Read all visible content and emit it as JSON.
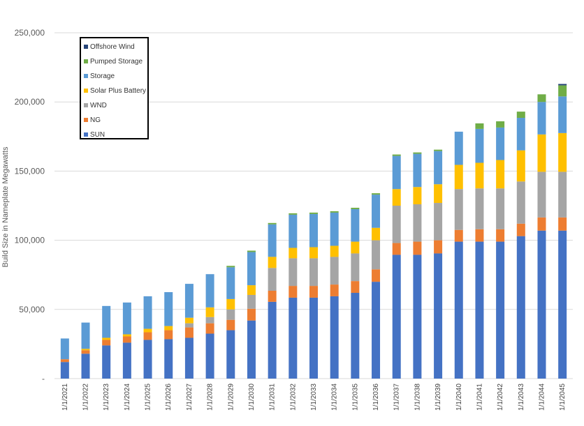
{
  "chart_data": {
    "type": "bar",
    "stacked": true,
    "title": "",
    "xlabel": "",
    "ylabel": "Build Size in Nameplate Megawatts",
    "ylim": [
      0,
      250000
    ],
    "yticks": [
      0,
      50000,
      100000,
      150000,
      200000,
      250000
    ],
    "ytick_labels": [
      "-",
      "50,000",
      "100,000",
      "150,000",
      "200,000",
      "250,000"
    ],
    "grid": true,
    "legend_position": "top-left",
    "categories": [
      "1/1/2021",
      "1/1/2022",
      "1/1/2023",
      "1/1/2024",
      "1/1/2025",
      "1/1/2026",
      "1/1/2027",
      "1/1/2028",
      "1/1/2029",
      "1/1/2030",
      "1/1/2031",
      "1/1/2032",
      "1/1/2033",
      "1/1/2034",
      "1/1/2035",
      "1/1/2036",
      "1/1/2037",
      "1/1/2038",
      "1/1/2039",
      "1/1/2040",
      "1/1/2041",
      "1/1/2042",
      "1/1/2043",
      "1/1/2044",
      "1/1/2045"
    ],
    "series": [
      {
        "name": "SUN",
        "color": "#4472C4",
        "values": [
          12000,
          18000,
          24000,
          26000,
          28000,
          28500,
          29500,
          32500,
          35000,
          42000,
          55500,
          58500,
          58500,
          59500,
          62000,
          70000,
          89500,
          89500,
          90500,
          99000,
          99000,
          99000,
          103000,
          107000,
          107000
        ]
      },
      {
        "name": "NG",
        "color": "#ED7D31",
        "values": [
          2000,
          2500,
          4000,
          4500,
          5500,
          6500,
          7500,
          7500,
          7500,
          8500,
          8000,
          8500,
          8500,
          8500,
          8500,
          9000,
          8500,
          9500,
          9500,
          8500,
          9000,
          9000,
          9000,
          9500,
          9500
        ]
      },
      {
        "name": "WND",
        "color": "#A5A5A5",
        "values": [
          0,
          0,
          0,
          0,
          0,
          0,
          3000,
          4500,
          7500,
          10000,
          16500,
          20000,
          20000,
          20000,
          20000,
          21000,
          27000,
          27000,
          27000,
          29500,
          29500,
          29500,
          30500,
          33000,
          33000
        ]
      },
      {
        "name": "Solar Plus Battery",
        "color": "#FFC000",
        "values": [
          0,
          1000,
          1500,
          1500,
          2500,
          3000,
          4000,
          7000,
          7500,
          7000,
          8000,
          7500,
          8000,
          8000,
          8500,
          9000,
          12000,
          12500,
          13500,
          17500,
          18500,
          20500,
          22500,
          27000,
          28000
        ]
      },
      {
        "name": "Storage",
        "color": "#5B9BD5",
        "values": [
          15000,
          19000,
          23000,
          23000,
          23500,
          24500,
          24500,
          24000,
          23000,
          24000,
          23500,
          24000,
          24000,
          24000,
          23500,
          24000,
          24000,
          24000,
          24000,
          24000,
          24500,
          23500,
          23500,
          23500,
          26500
        ]
      },
      {
        "name": "Pumped Storage",
        "color": "#70AD47",
        "values": [
          0,
          0,
          0,
          0,
          0,
          0,
          0,
          0,
          1000,
          1000,
          1000,
          1000,
          1000,
          1000,
          1000,
          1000,
          1000,
          1000,
          1000,
          0,
          4000,
          4500,
          4500,
          5500,
          8000
        ]
      },
      {
        "name": "Offshore Wind",
        "color": "#264478",
        "values": [
          0,
          0,
          0,
          0,
          0,
          0,
          0,
          0,
          0,
          0,
          0,
          0,
          0,
          0,
          0,
          0,
          0,
          0,
          0,
          0,
          0,
          0,
          0,
          0,
          1000
        ]
      }
    ]
  },
  "legend_order": [
    "Offshore Wind",
    "Pumped Storage",
    "Storage",
    "Solar Plus Battery",
    "WND",
    "NG",
    "SUN"
  ]
}
